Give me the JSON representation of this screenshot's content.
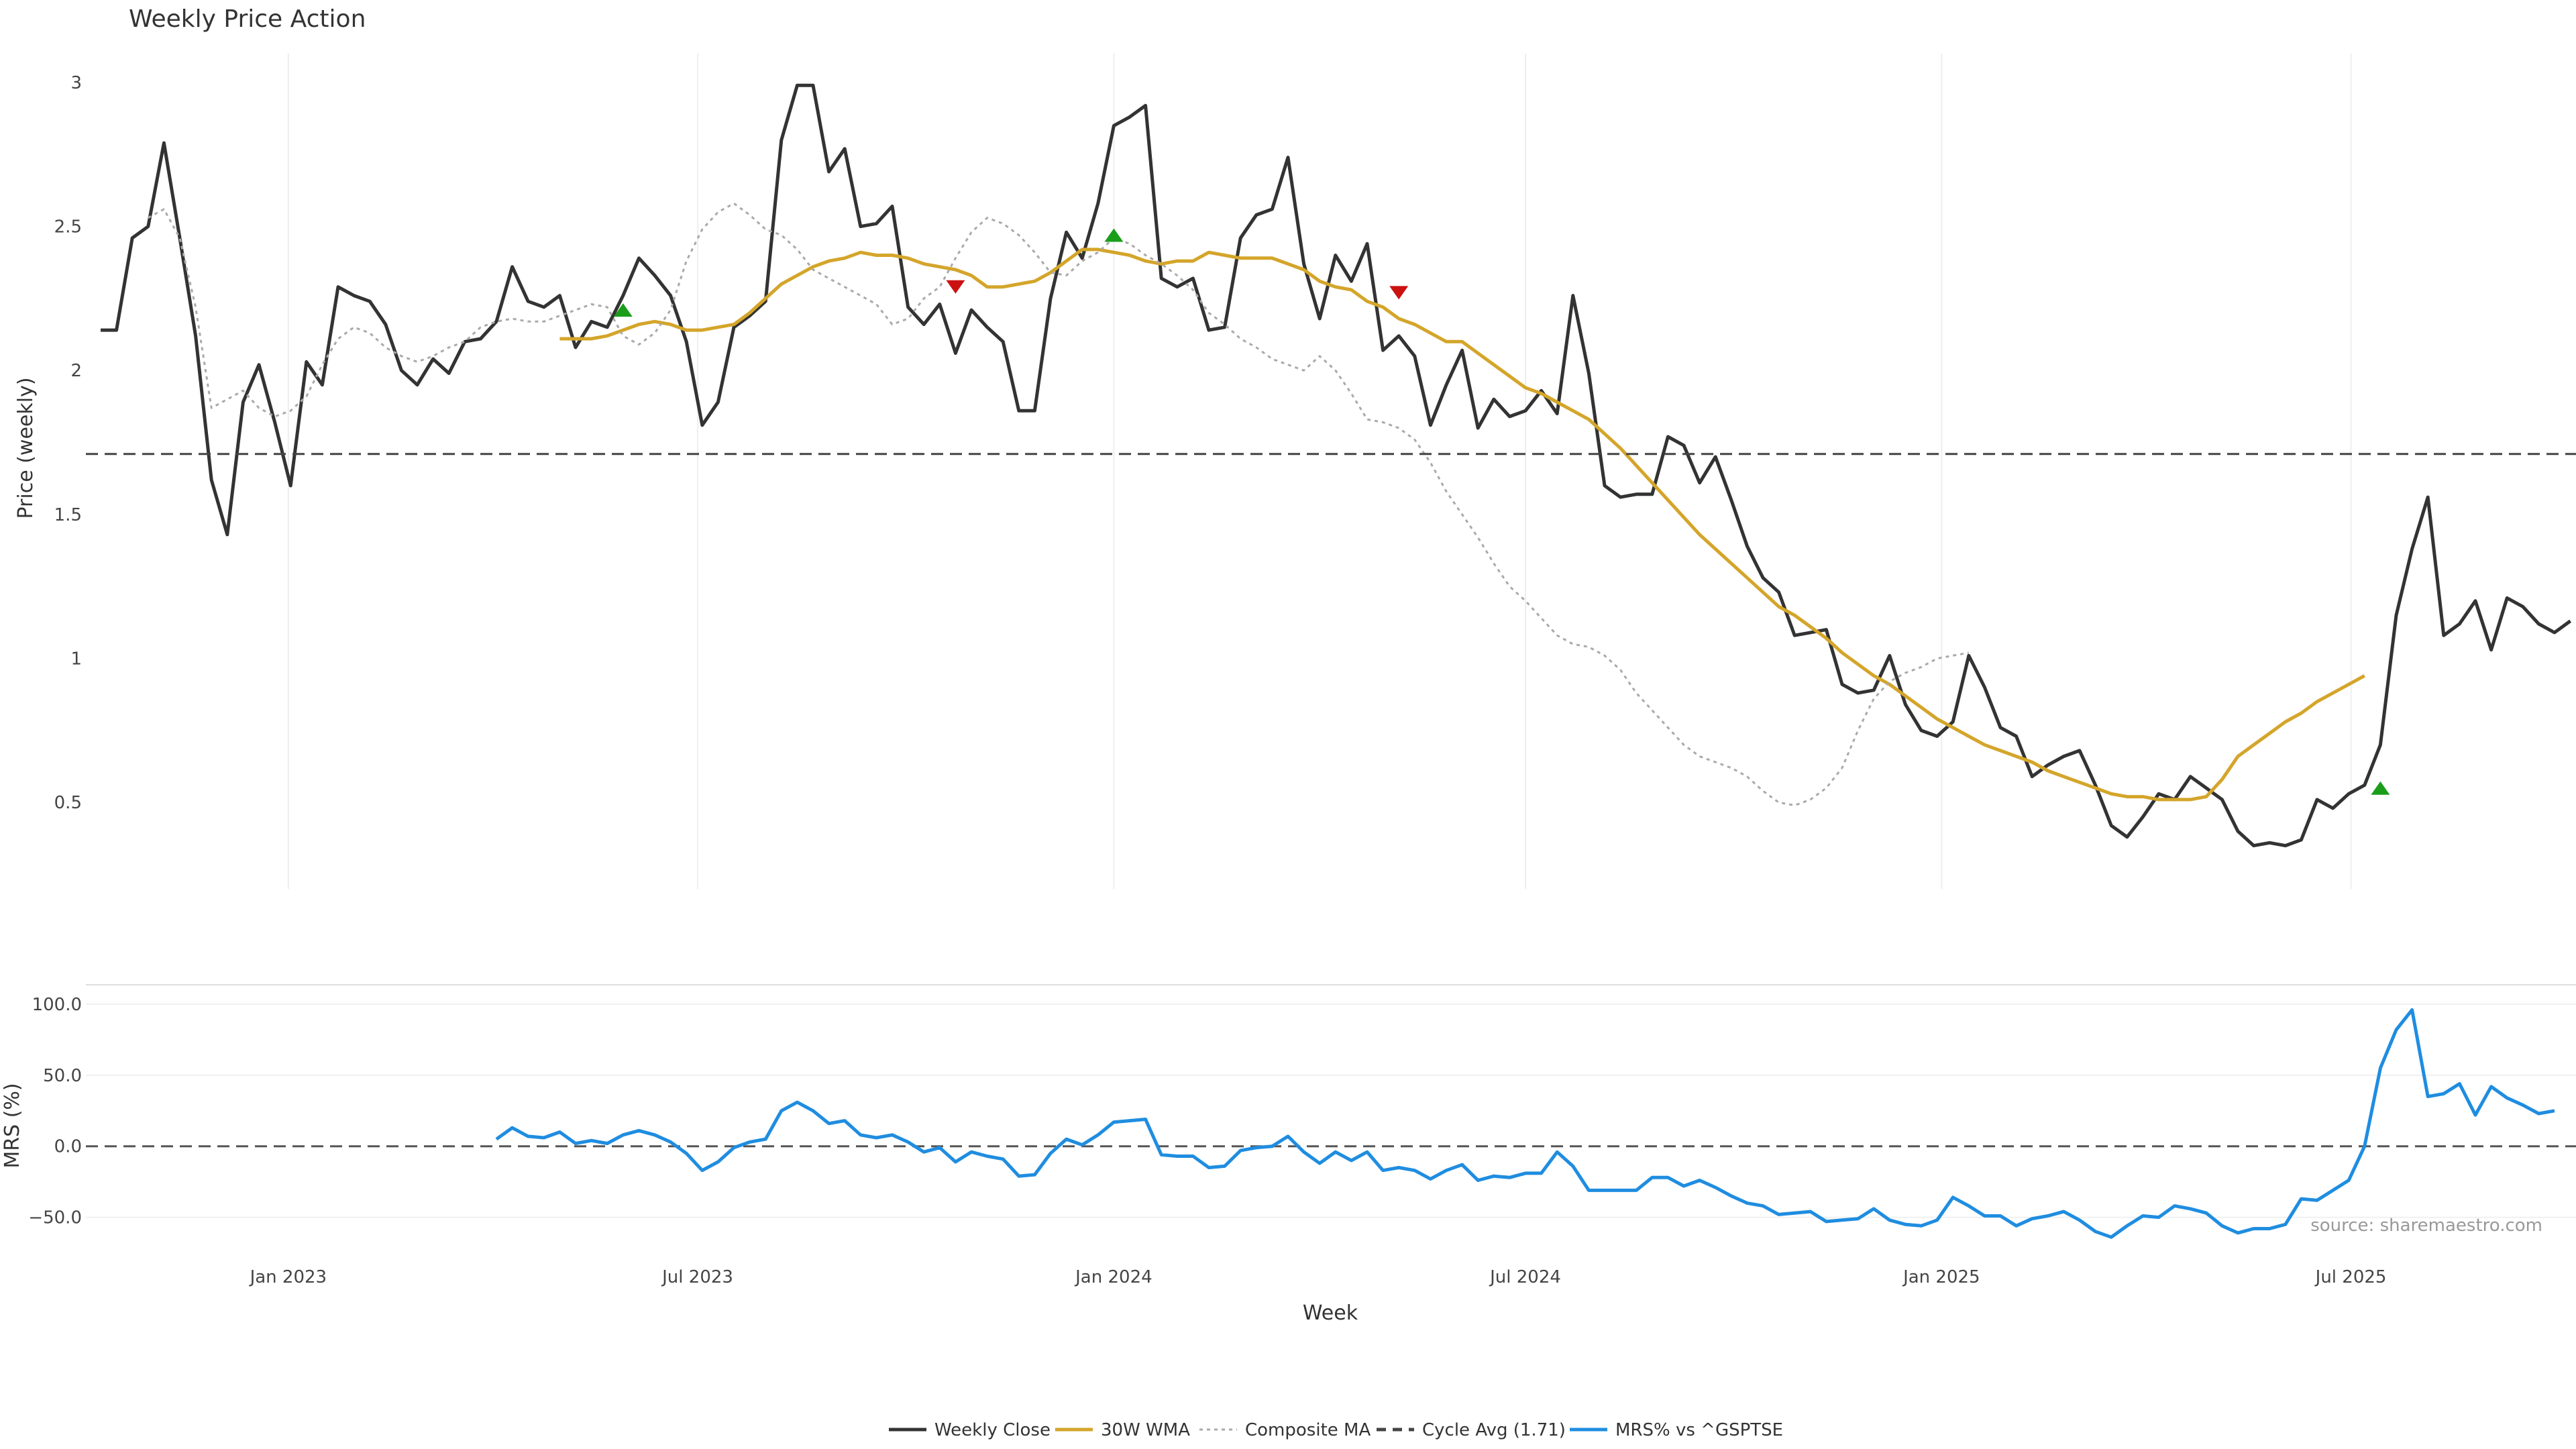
{
  "chart_data": [
    {
      "type": "line",
      "title": "Weekly Price Action",
      "ylabel": "Price (weekly)",
      "ylim": [
        0.2,
        3.1
      ],
      "yticks": [
        "0.5",
        "1",
        "1.5",
        "2",
        "2.5",
        "3"
      ],
      "grid": "vertical",
      "x_start": "2022-10-10",
      "x_step_days": 7,
      "series": [
        {
          "name": "Weekly Close",
          "color": "#333333",
          "style": "solid",
          "values": [
            2.14,
            2.14,
            2.46,
            2.5,
            2.79,
            2.46,
            2.12,
            1.62,
            1.43,
            1.89,
            2.02,
            1.82,
            1.6,
            2.03,
            1.95,
            2.29,
            2.26,
            2.24,
            2.16,
            2.0,
            1.95,
            2.04,
            1.99,
            2.1,
            2.11,
            2.17,
            2.36,
            2.24,
            2.22,
            2.26,
            2.08,
            2.17,
            2.15,
            2.26,
            2.39,
            2.33,
            2.26,
            2.1,
            1.81,
            1.89,
            2.15,
            2.19,
            2.24,
            2.8,
            2.99,
            2.99,
            2.69,
            2.77,
            2.5,
            2.51,
            2.57,
            2.22,
            2.16,
            2.23,
            2.06,
            2.21,
            2.15,
            2.1,
            1.86,
            1.86,
            2.25,
            2.48,
            2.39,
            2.58,
            2.85,
            2.88,
            2.92,
            2.32,
            2.29,
            2.32,
            2.14,
            2.15,
            2.46,
            2.54,
            2.56,
            2.74,
            2.37,
            2.18,
            2.4,
            2.31,
            2.44,
            2.07,
            2.12,
            2.05,
            1.81,
            1.95,
            2.07,
            1.8,
            1.9,
            1.84,
            1.86,
            1.93,
            1.85,
            2.26,
            1.99,
            1.6,
            1.56,
            1.57,
            1.57,
            1.77,
            1.74,
            1.61,
            1.7,
            1.55,
            1.39,
            1.28,
            1.23,
            1.08,
            1.09,
            1.1,
            0.91,
            0.88,
            0.89,
            1.01,
            0.84,
            0.75,
            0.73,
            0.78,
            1.01,
            0.9,
            0.76,
            0.73,
            0.59,
            0.63,
            0.66,
            0.68,
            0.56,
            0.42,
            0.38,
            0.45,
            0.53,
            0.51,
            0.59,
            0.55,
            0.51,
            0.4,
            0.35,
            0.36,
            0.35,
            0.37,
            0.51,
            0.48,
            0.53,
            0.56,
            0.7,
            1.15,
            1.38,
            1.56,
            1.08,
            1.12,
            1.2,
            1.03,
            1.21,
            1.18,
            1.12,
            1.09,
            1.13
          ]
        },
        {
          "name": "30W WMA",
          "color": "#d4a52a",
          "style": "solid",
          "start_index": 29,
          "values": [
            2.11,
            2.11,
            2.11,
            2.12,
            2.14,
            2.16,
            2.17,
            2.16,
            2.14,
            2.14,
            2.15,
            2.16,
            2.2,
            2.25,
            2.3,
            2.33,
            2.36,
            2.38,
            2.39,
            2.41,
            2.4,
            2.4,
            2.39,
            2.37,
            2.36,
            2.35,
            2.33,
            2.29,
            2.29,
            2.3,
            2.31,
            2.34,
            2.38,
            2.42,
            2.42,
            2.41,
            2.4,
            2.38,
            2.37,
            2.38,
            2.38,
            2.41,
            2.4,
            2.39,
            2.39,
            2.39,
            2.37,
            2.35,
            2.31,
            2.29,
            2.28,
            2.24,
            2.22,
            2.18,
            2.16,
            2.13,
            2.1,
            2.1,
            2.06,
            2.02,
            1.98,
            1.94,
            1.92,
            1.89,
            1.86,
            1.83,
            1.78,
            1.73,
            1.67,
            1.61,
            1.55,
            1.49,
            1.43,
            1.38,
            1.33,
            1.28,
            1.23,
            1.18,
            1.15,
            1.11,
            1.07,
            1.02,
            0.98,
            0.94,
            0.91,
            0.87,
            0.83,
            0.79,
            0.76,
            0.73,
            0.7,
            0.68,
            0.66,
            0.64,
            0.61,
            0.59,
            0.57,
            0.55,
            0.53,
            0.52,
            0.52,
            0.51,
            0.51,
            0.51,
            0.52,
            0.58,
            0.66,
            0.7,
            0.74,
            0.78,
            0.81,
            0.85,
            0.88,
            0.91,
            0.94
          ]
        },
        {
          "name": "Composite MA",
          "color": "#aaaaaa",
          "style": "dotted",
          "start_index": 3,
          "values": [
            2.53,
            2.56,
            2.46,
            2.22,
            1.87,
            1.9,
            1.93,
            1.87,
            1.84,
            1.86,
            1.91,
            2.02,
            2.11,
            2.15,
            2.13,
            2.08,
            2.05,
            2.03,
            2.05,
            2.08,
            2.1,
            2.15,
            2.17,
            2.18,
            2.17,
            2.17,
            2.19,
            2.21,
            2.23,
            2.22,
            2.12,
            2.09,
            2.13,
            2.21,
            2.38,
            2.49,
            2.55,
            2.58,
            2.54,
            2.49,
            2.47,
            2.42,
            2.35,
            2.32,
            2.29,
            2.26,
            2.23,
            2.16,
            2.18,
            2.25,
            2.29,
            2.39,
            2.48,
            2.53,
            2.51,
            2.47,
            2.41,
            2.34,
            2.33,
            2.38,
            2.41,
            2.46,
            2.44,
            2.4,
            2.37,
            2.33,
            2.28,
            2.2,
            2.16,
            2.11,
            2.08,
            2.04,
            2.02,
            2.0,
            2.05,
            2.0,
            1.92,
            1.83,
            1.82,
            1.8,
            1.76,
            1.68,
            1.58,
            1.5,
            1.42,
            1.33,
            1.25,
            1.2,
            1.14,
            1.08,
            1.05,
            1.04,
            1.01,
            0.96,
            0.88,
            0.82,
            0.76,
            0.7,
            0.66,
            0.64,
            0.62,
            0.59,
            0.54,
            0.5,
            0.49,
            0.51,
            0.55,
            0.62,
            0.75,
            0.86,
            0.92,
            0.95,
            0.97,
            1.0,
            1.01,
            1.02
          ]
        },
        {
          "name": "Cycle Avg (1.71)",
          "color": "#444444",
          "style": "dashed",
          "constant": 1.71
        }
      ],
      "markers": [
        {
          "type": "buy",
          "index": 33,
          "y": 2.21,
          "color": "#1a9e1a"
        },
        {
          "type": "sell",
          "index": 54,
          "y": 2.29,
          "color": "#cc1111"
        },
        {
          "type": "buy",
          "index": 64,
          "y": 2.47,
          "color": "#1a9e1a"
        },
        {
          "type": "sell",
          "index": 82,
          "y": 2.27,
          "color": "#cc1111"
        },
        {
          "type": "buy",
          "index": 144,
          "y": 0.55,
          "color": "#1a9e1a"
        }
      ]
    },
    {
      "type": "line",
      "ylabel": "MRS (%)",
      "ylim": [
        -62,
        108
      ],
      "yticks": [
        "100.0",
        "50.0",
        "0.0",
        "−50.0"
      ],
      "xlabel": "Week",
      "xticks": [
        "Jan 2023",
        "Jul 2023",
        "Jan 2024",
        "Jul 2024",
        "Jan 2025",
        "Jul 2025"
      ],
      "zero_line": {
        "color": "#555555",
        "style": "dashed"
      },
      "series": [
        {
          "name": "MRS% vs ^GSPTSE",
          "color": "#1f8de0",
          "style": "solid",
          "start_index": 25,
          "values": [
            5,
            13,
            7,
            6,
            10,
            2,
            4,
            2,
            8,
            11,
            8,
            3,
            -5,
            -17,
            -11,
            -1,
            3,
            5,
            25,
            31,
            25,
            16,
            18,
            8,
            6,
            8,
            3,
            -4,
            -1,
            -11,
            -4,
            -7,
            -9,
            -21,
            -20,
            -5,
            5,
            1,
            8,
            17,
            18,
            19,
            -6,
            -7,
            -7,
            -15,
            -14,
            -3,
            -1,
            0,
            7,
            -4,
            -12,
            -4,
            -10,
            -4,
            -17,
            -15,
            -17,
            -23,
            -17,
            -13,
            -24,
            -21,
            -22,
            -19,
            -19,
            -4,
            -14,
            -31,
            -31,
            -31,
            -31,
            -22,
            -22,
            -28,
            -24,
            -29,
            -35,
            -40,
            -42,
            -48,
            -47,
            -46,
            -53,
            -52,
            -51,
            -44,
            -52,
            -55,
            -56,
            -52,
            -36,
            -42,
            -49,
            -49,
            -56,
            -51,
            -49,
            -46,
            -52,
            -60,
            -64,
            -56,
            -49,
            -50,
            -42,
            -44,
            -47,
            -56,
            -61,
            -58,
            -58,
            -55,
            -37,
            -38,
            -31,
            -24,
            0,
            55,
            82,
            96,
            35,
            37,
            44,
            22,
            42,
            34,
            29,
            23,
            25
          ]
        }
      ]
    }
  ],
  "legend": [
    {
      "label": "Weekly Close",
      "color": "#333333",
      "style": "solid"
    },
    {
      "label": "30W WMA",
      "color": "#d4a52a",
      "style": "solid"
    },
    {
      "label": "Composite MA",
      "color": "#aaaaaa",
      "style": "dotted"
    },
    {
      "label": "Cycle Avg (1.71)",
      "color": "#444444",
      "style": "dashed"
    },
    {
      "label": "MRS% vs ^GSPTSE",
      "color": "#1f8de0",
      "style": "solid"
    }
  ],
  "source_text": "source: sharemaestro.com"
}
